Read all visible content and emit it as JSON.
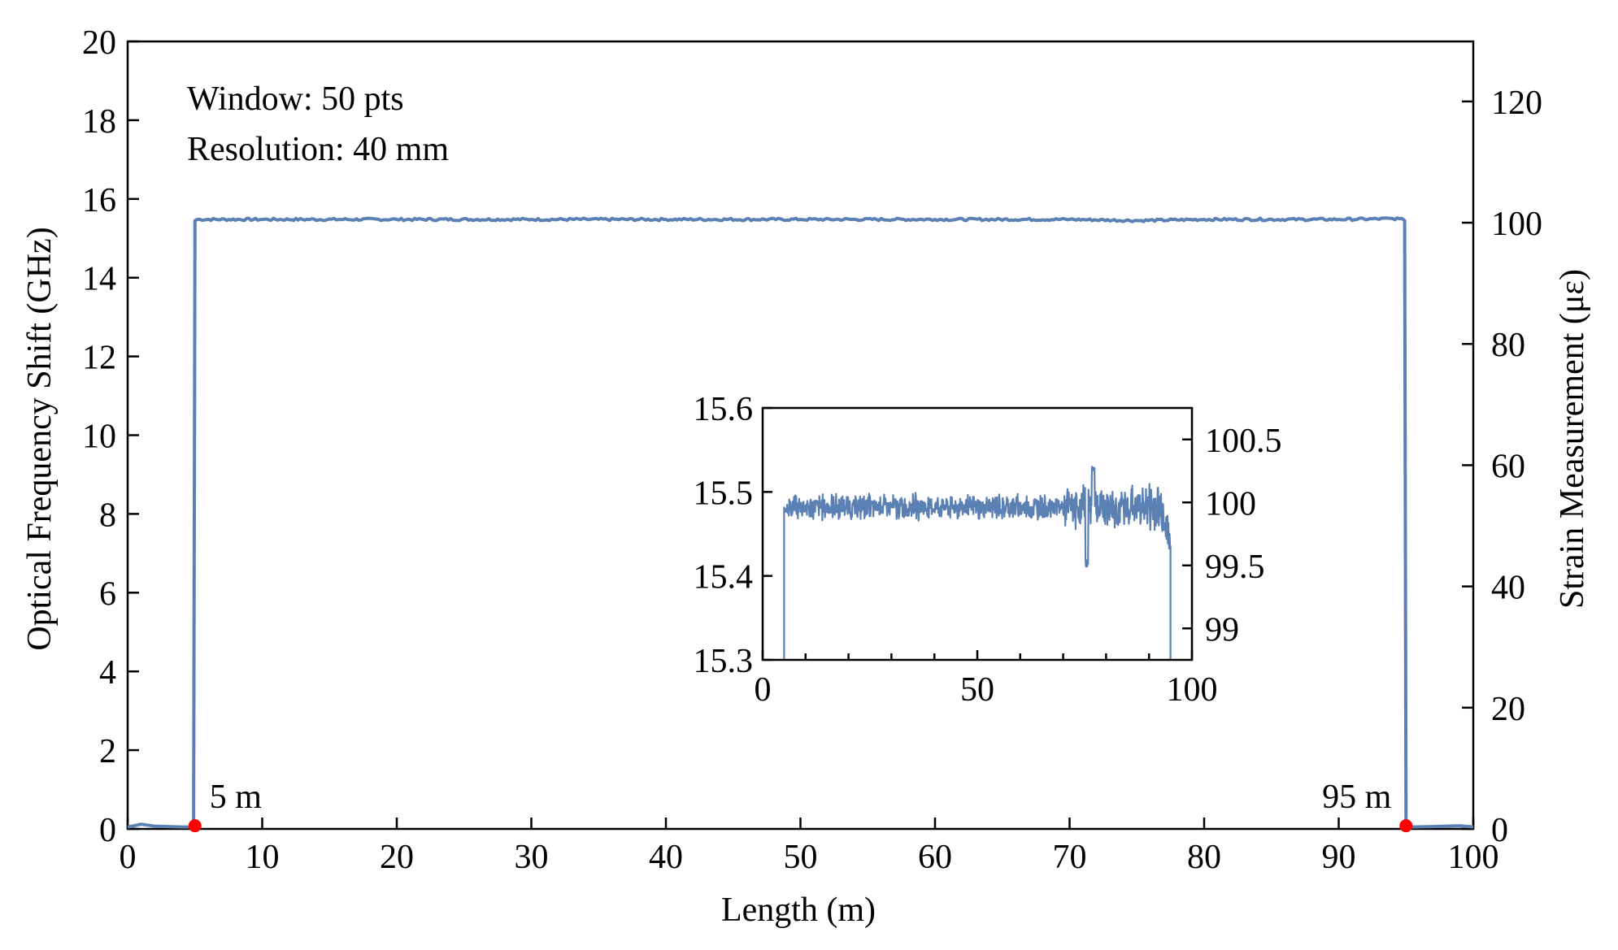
{
  "chart_data": {
    "type": "line",
    "xlabel": "Length (m)",
    "ylabel": "Optical Frequency Shift (GHz)",
    "y2label": "Strain Measurement (με)",
    "xlim": [
      0,
      100
    ],
    "ylim": [
      0,
      20
    ],
    "y2lim": [
      0,
      129.9
    ],
    "xticks": [
      0,
      10,
      20,
      30,
      40,
      50,
      60,
      70,
      80,
      90,
      100
    ],
    "yticks": [
      0,
      2,
      4,
      6,
      8,
      10,
      12,
      14,
      16,
      18,
      20
    ],
    "y2ticks": [
      0,
      20,
      40,
      60,
      80,
      100,
      120
    ],
    "grid": false,
    "series_color": "#5b80b4",
    "marker_color": "#ff0000",
    "series": [
      {
        "x": [
          0,
          0.5,
          1,
          2,
          3,
          4,
          4.9,
          5,
          5.2,
          10,
          20,
          30,
          40,
          50,
          60,
          70,
          75,
          80,
          90,
          94.5,
          94.9,
          95,
          95.5,
          97,
          99,
          100
        ],
        "y": [
          0.05,
          0.08,
          0.12,
          0.07,
          0.06,
          0.05,
          0.05,
          15.45,
          15.48,
          15.48,
          15.48,
          15.48,
          15.48,
          15.48,
          15.48,
          15.48,
          15.45,
          15.48,
          15.48,
          15.5,
          15.45,
          0.05,
          0.05,
          0.06,
          0.08,
          0.05
        ]
      }
    ],
    "markers": [
      {
        "x": 5,
        "y": 0.08,
        "label": "5 m"
      },
      {
        "x": 95,
        "y": 0.08,
        "label": "95 m"
      }
    ],
    "annotations": [
      "Window: 50 pts",
      "Resolution: 40 mm"
    ],
    "inset": {
      "type": "line",
      "xlim": [
        0,
        100
      ],
      "ylim": [
        15.3,
        15.6
      ],
      "y2lim": [
        98.75,
        100.75
      ],
      "xticks": [
        0,
        50,
        100
      ],
      "yticks": [
        15.3,
        15.4,
        15.5,
        15.6
      ],
      "y2ticks": [
        99,
        99.5,
        100,
        100.5
      ],
      "noise": {
        "x_start": 5,
        "x_end": 95,
        "mean": 15.482,
        "amplitude": 0.012,
        "dip_at": 75.5,
        "dip_min": 15.41,
        "peak_near_end": 15.53
      }
    }
  }
}
